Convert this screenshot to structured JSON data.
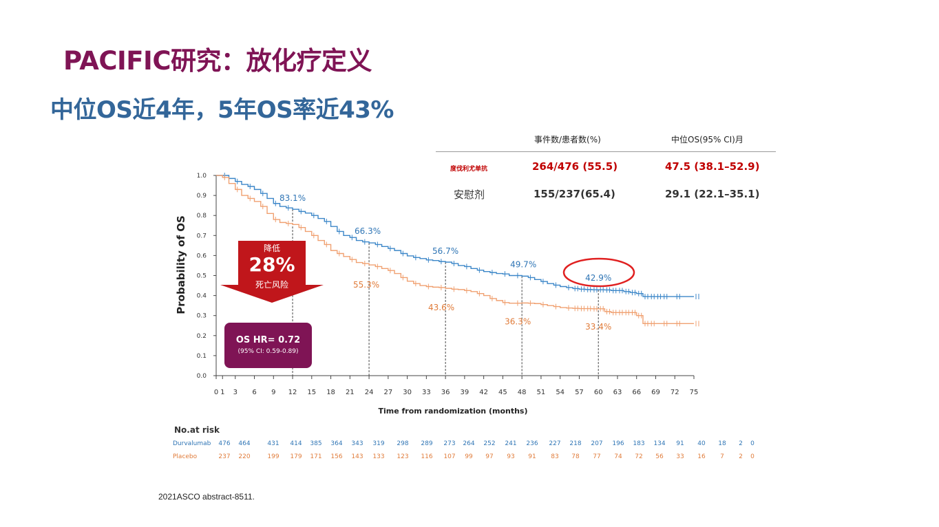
{
  "slide": {
    "title": "PACIFIC研究：放化疗定义",
    "subtitle": "中位OS近4年，5年OS率近43%",
    "footnote": "2021ASCO abstract-8511."
  },
  "summary_table": {
    "headers": [
      "事件数/患者数(%)",
      "中位OS(95% CI)月"
    ],
    "rows": [
      {
        "label": "度伐利尤单抗",
        "events": "264/476 (55.5)",
        "median": "47.5 (38.1–52.9)",
        "color": "#c00000"
      },
      {
        "label": "安慰剂",
        "events": "155/237(65.4)",
        "median": "29.1 (22.1–35.1)",
        "color": "#333333"
      }
    ]
  },
  "callout": {
    "arrow_top": "降低",
    "arrow_big": "28%",
    "arrow_bottom": "死亡风险",
    "arrow_color": "#c0161b",
    "hr_line": "OS HR= 0.72",
    "hr_ci": "(95% CI: 0.59-0.89)",
    "hr_box_color": "#7f1455"
  },
  "chart_data": {
    "type": "line",
    "title": "",
    "xlabel": "Time from randomization  (months)",
    "ylabel": "Probability of OS",
    "xlim": [
      0,
      75
    ],
    "ylim": [
      0,
      1.0
    ],
    "x_ticks": [
      0,
      1,
      3,
      6,
      9,
      12,
      15,
      18,
      21,
      24,
      27,
      30,
      33,
      36,
      39,
      42,
      45,
      48,
      51,
      54,
      57,
      60,
      63,
      66,
      69,
      72,
      75
    ],
    "y_ticks": [
      "0.0",
      "0.1",
      "0.2",
      "0.3",
      "0.4",
      "0.5",
      "0.6",
      "0.7",
      "0.8",
      "0.9",
      "1.0"
    ],
    "grid": false,
    "series": [
      {
        "name": "Durvalumab",
        "color": "#3b86c8",
        "points": [
          [
            0,
            1.0
          ],
          [
            1,
            1.0
          ],
          [
            2,
            0.985
          ],
          [
            3,
            0.97
          ],
          [
            4,
            0.955
          ],
          [
            5,
            0.945
          ],
          [
            6,
            0.93
          ],
          [
            7,
            0.91
          ],
          [
            8,
            0.885
          ],
          [
            9,
            0.86
          ],
          [
            10,
            0.845
          ],
          [
            11,
            0.838
          ],
          [
            12,
            0.831
          ],
          [
            13,
            0.82
          ],
          [
            14,
            0.812
          ],
          [
            15,
            0.8
          ],
          [
            16,
            0.785
          ],
          [
            17,
            0.77
          ],
          [
            18,
            0.745
          ],
          [
            19,
            0.72
          ],
          [
            20,
            0.7
          ],
          [
            21,
            0.69
          ],
          [
            22,
            0.675
          ],
          [
            23,
            0.668
          ],
          [
            24,
            0.663
          ],
          [
            25,
            0.655
          ],
          [
            26,
            0.645
          ],
          [
            27,
            0.635
          ],
          [
            28,
            0.625
          ],
          [
            29,
            0.61
          ],
          [
            30,
            0.598
          ],
          [
            31,
            0.59
          ],
          [
            32,
            0.585
          ],
          [
            33,
            0.578
          ],
          [
            34,
            0.575
          ],
          [
            35,
            0.57
          ],
          [
            36,
            0.567
          ],
          [
            37,
            0.56
          ],
          [
            38,
            0.55
          ],
          [
            39,
            0.545
          ],
          [
            40,
            0.535
          ],
          [
            41,
            0.527
          ],
          [
            42,
            0.52
          ],
          [
            43,
            0.515
          ],
          [
            44,
            0.51
          ],
          [
            45,
            0.508
          ],
          [
            46,
            0.5
          ],
          [
            47,
            0.5
          ],
          [
            48,
            0.497
          ],
          [
            49,
            0.49
          ],
          [
            50,
            0.48
          ],
          [
            51,
            0.47
          ],
          [
            52,
            0.46
          ],
          [
            53,
            0.452
          ],
          [
            54,
            0.445
          ],
          [
            55,
            0.44
          ],
          [
            56,
            0.435
          ],
          [
            57,
            0.432
          ],
          [
            58,
            0.43
          ],
          [
            59,
            0.429
          ],
          [
            60,
            0.429
          ],
          [
            61,
            0.428
          ],
          [
            62,
            0.425
          ],
          [
            63,
            0.425
          ],
          [
            64,
            0.42
          ],
          [
            65,
            0.415
          ],
          [
            66,
            0.41
          ],
          [
            67,
            0.395
          ],
          [
            68,
            0.395
          ],
          [
            69,
            0.395
          ],
          [
            70,
            0.395
          ],
          [
            72,
            0.395
          ],
          [
            75,
            0.395
          ]
        ],
        "milestones": [
          [
            12,
            "83.1%"
          ],
          [
            24,
            "66.3%"
          ],
          [
            36,
            "56.7%"
          ],
          [
            48,
            "49.7%"
          ],
          [
            60,
            "42.9%"
          ]
        ]
      },
      {
        "name": "Placebo",
        "color": "#f0a070",
        "points": [
          [
            0,
            1.0
          ],
          [
            1,
            0.99
          ],
          [
            2,
            0.96
          ],
          [
            3,
            0.93
          ],
          [
            4,
            0.9
          ],
          [
            5,
            0.885
          ],
          [
            6,
            0.87
          ],
          [
            7,
            0.845
          ],
          [
            8,
            0.81
          ],
          [
            9,
            0.78
          ],
          [
            10,
            0.765
          ],
          [
            11,
            0.76
          ],
          [
            12,
            0.755
          ],
          [
            13,
            0.74
          ],
          [
            14,
            0.72
          ],
          [
            15,
            0.7
          ],
          [
            16,
            0.675
          ],
          [
            17,
            0.655
          ],
          [
            18,
            0.625
          ],
          [
            19,
            0.61
          ],
          [
            20,
            0.595
          ],
          [
            21,
            0.58
          ],
          [
            22,
            0.565
          ],
          [
            23,
            0.56
          ],
          [
            24,
            0.553
          ],
          [
            25,
            0.545
          ],
          [
            26,
            0.535
          ],
          [
            27,
            0.525
          ],
          [
            28,
            0.51
          ],
          [
            29,
            0.49
          ],
          [
            30,
            0.472
          ],
          [
            31,
            0.46
          ],
          [
            32,
            0.45
          ],
          [
            33,
            0.445
          ],
          [
            34,
            0.442
          ],
          [
            35,
            0.44
          ],
          [
            36,
            0.436
          ],
          [
            37,
            0.432
          ],
          [
            38,
            0.43
          ],
          [
            39,
            0.425
          ],
          [
            40,
            0.42
          ],
          [
            41,
            0.41
          ],
          [
            42,
            0.4
          ],
          [
            43,
            0.385
          ],
          [
            44,
            0.375
          ],
          [
            45,
            0.365
          ],
          [
            46,
            0.362
          ],
          [
            47,
            0.362
          ],
          [
            48,
            0.363
          ],
          [
            49,
            0.362
          ],
          [
            50,
            0.36
          ],
          [
            51,
            0.355
          ],
          [
            52,
            0.35
          ],
          [
            53,
            0.345
          ],
          [
            54,
            0.34
          ],
          [
            55,
            0.338
          ],
          [
            56,
            0.336
          ],
          [
            57,
            0.335
          ],
          [
            58,
            0.335
          ],
          [
            59,
            0.334
          ],
          [
            60,
            0.334
          ],
          [
            61,
            0.32
          ],
          [
            62,
            0.315
          ],
          [
            63,
            0.315
          ],
          [
            64,
            0.315
          ],
          [
            65,
            0.315
          ],
          [
            66,
            0.3
          ],
          [
            67,
            0.26
          ],
          [
            68,
            0.26
          ],
          [
            70,
            0.26
          ],
          [
            72,
            0.26
          ],
          [
            75,
            0.26
          ]
        ],
        "milestones": [
          [
            24,
            "55.3%"
          ],
          [
            36,
            "43.6%"
          ],
          [
            48,
            "36.3%"
          ],
          [
            60,
            "33.4%"
          ]
        ]
      }
    ]
  },
  "risk_table": {
    "title": "No.at risk",
    "rows": [
      {
        "name": "Durvalumab",
        "color": "#2f75b5",
        "values": [
          "476",
          "464",
          "431",
          "414",
          "385",
          "364",
          "343",
          "319",
          "298",
          "289",
          "273",
          "264",
          "252",
          "241",
          "236",
          "227",
          "218",
          "207",
          "196",
          "183",
          "134",
          "91",
          "40",
          "18",
          "2",
          "0"
        ]
      },
      {
        "name": "Placebo",
        "color": "#e07b39",
        "values": [
          "237",
          "220",
          "199",
          "179",
          "171",
          "156",
          "143",
          "133",
          "123",
          "116",
          "107",
          "99",
          "97",
          "93",
          "91",
          "83",
          "78",
          "77",
          "74",
          "72",
          "56",
          "33",
          "16",
          "7",
          "2",
          "0"
        ]
      }
    ]
  }
}
